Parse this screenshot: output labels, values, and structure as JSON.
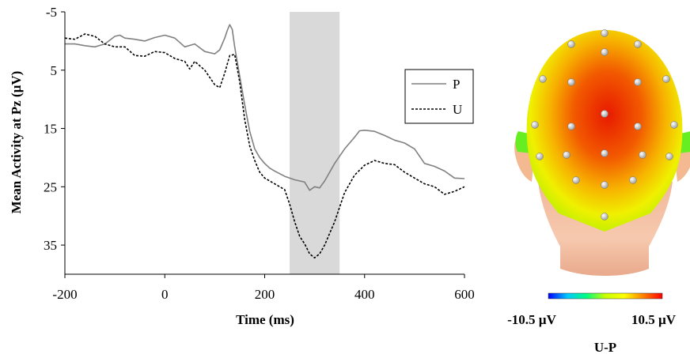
{
  "chart_data": [
    {
      "type": "line",
      "title": "",
      "xlabel": "Time (ms)",
      "ylabel": "Mean Activity at Pz (µV)",
      "xlim": [
        -200,
        600
      ],
      "ylim": [
        -5,
        40
      ],
      "y_inverted": true,
      "x_ticks": [
        "-200",
        "0",
        "200",
        "400",
        "600"
      ],
      "y_ticks": [
        "-5",
        "5",
        "15",
        "25",
        "35"
      ],
      "x_tick_values": [
        -200,
        0,
        200,
        400,
        600
      ],
      "y_tick_values": [
        -5,
        5,
        15,
        25,
        35
      ],
      "grid": false,
      "legend_position": "right",
      "shaded_window": [
        250,
        350
      ],
      "series": [
        {
          "name": "P",
          "color": "#808080",
          "style": "solid",
          "x": [
            -200,
            -180,
            -160,
            -140,
            -120,
            -100,
            -90,
            -80,
            -60,
            -40,
            -20,
            0,
            20,
            40,
            60,
            80,
            100,
            110,
            120,
            125,
            130,
            135,
            140,
            150,
            160,
            170,
            180,
            190,
            200,
            210,
            220,
            240,
            260,
            280,
            290,
            300,
            310,
            320,
            340,
            360,
            380,
            390,
            400,
            420,
            440,
            460,
            480,
            500,
            520,
            540,
            560,
            580,
            600
          ],
          "y": [
            0.5,
            0.5,
            0.8,
            1.0,
            0.5,
            -0.8,
            -1.0,
            -0.5,
            -0.3,
            0,
            -0.6,
            -1.0,
            -0.5,
            1.0,
            0.5,
            1.8,
            2.2,
            1.5,
            -0.5,
            -1.8,
            -2.8,
            -2.0,
            1.0,
            6.0,
            11.0,
            15.5,
            18.5,
            20.0,
            21.0,
            21.8,
            22.3,
            23.2,
            23.8,
            24.2,
            25.6,
            25.0,
            25.2,
            24.0,
            21.0,
            18.5,
            16.5,
            15.4,
            15.3,
            15.5,
            16.2,
            17.0,
            17.5,
            18.5,
            21.0,
            21.5,
            22.3,
            23.5,
            23.6
          ]
        },
        {
          "name": "U",
          "color": "#000000",
          "style": "dashed",
          "x": [
            -200,
            -180,
            -160,
            -140,
            -120,
            -100,
            -80,
            -60,
            -40,
            -20,
            0,
            20,
            40,
            50,
            60,
            80,
            100,
            110,
            120,
            130,
            140,
            150,
            160,
            170,
            180,
            190,
            200,
            210,
            220,
            240,
            250,
            260,
            270,
            280,
            290,
            300,
            310,
            320,
            340,
            360,
            380,
            400,
            420,
            440,
            460,
            480,
            500,
            520,
            540,
            560,
            580,
            600
          ],
          "y": [
            -0.5,
            -0.3,
            -1.2,
            -0.8,
            0.5,
            1.0,
            1.0,
            2.5,
            2.6,
            1.8,
            2.0,
            3.0,
            3.5,
            4.8,
            3.5,
            5.0,
            7.5,
            8.0,
            5.5,
            2.5,
            2.3,
            7.0,
            13.5,
            18.0,
            20.5,
            22.5,
            23.5,
            24.0,
            24.5,
            25.5,
            28.0,
            31.0,
            33.5,
            34.8,
            36.5,
            37.2,
            36.5,
            35.0,
            31.0,
            26.0,
            23.0,
            21.3,
            20.5,
            21.0,
            21.2,
            22.5,
            23.5,
            24.5,
            25.0,
            26.3,
            25.8,
            25.0
          ]
        }
      ]
    },
    {
      "type": "heatmap",
      "title": "U-P",
      "colorbar": {
        "min_label": "-10.5 µV",
        "max_label": "10.5 µV",
        "min": -10.5,
        "max": 10.5,
        "colors": [
          "#0000ff",
          "#00c8ff",
          "#00ff80",
          "#c8ff00",
          "#ffff00",
          "#ff8000",
          "#ff0000"
        ]
      },
      "electrodes": 22
    }
  ]
}
